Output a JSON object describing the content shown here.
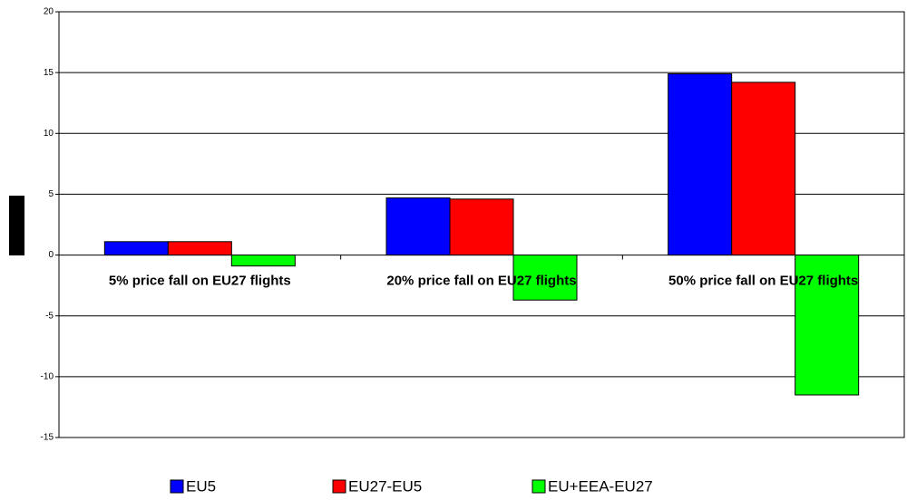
{
  "chart_data": {
    "type": "bar",
    "categories": [
      "5% price fall on EU27 flights",
      "20% price fall on EU27 flights",
      "50% price fall on EU27 flights"
    ],
    "series": [
      {
        "name": "EU5",
        "color": "#0000ff",
        "values": [
          1.1,
          4.7,
          14.9
        ]
      },
      {
        "name": "EU27-EU5",
        "color": "#ff0000",
        "values": [
          1.1,
          4.6,
          14.2
        ]
      },
      {
        "name": "EU+EEA-EU27",
        "color": "#00ff00",
        "values": [
          -0.9,
          -3.7,
          -11.5
        ]
      }
    ],
    "ylim": [
      -15,
      20
    ],
    "yticks": [
      -15,
      -10,
      -5,
      0,
      5,
      10,
      15,
      20
    ],
    "grid": true,
    "legend": "bottom"
  }
}
